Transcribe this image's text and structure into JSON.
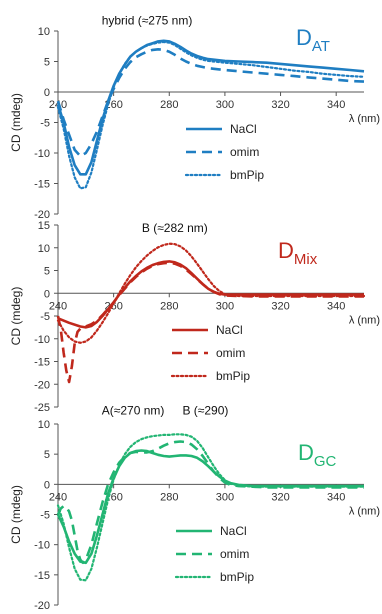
{
  "chart_data": [
    {
      "type": "line",
      "panel_label": "D",
      "panel_sub": "AT",
      "color": "#1f7ec2",
      "annotations": [
        {
          "text": "hybrid (≈275 nm)",
          "x": 272,
          "y": 11.1
        }
      ],
      "ylabel": "CD (mdeg)",
      "xlabel": "λ (nm)",
      "xlim": [
        240,
        350
      ],
      "ylim": [
        -20,
        10
      ],
      "xticks": [
        240,
        260,
        280,
        300,
        320,
        340
      ],
      "yticks": [
        10,
        5,
        0,
        -5,
        -10,
        -15,
        -20
      ],
      "legend": [
        {
          "name": "NaCl",
          "style": "solid"
        },
        {
          "name": "omim",
          "style": "dashed"
        },
        {
          "name": "bmPip",
          "style": "dotted"
        }
      ],
      "series": [
        {
          "name": "NaCl",
          "style": "solid",
          "x": [
            240,
            242,
            244,
            246,
            248,
            250,
            252,
            254,
            256,
            258,
            260,
            262,
            264,
            266,
            268,
            270,
            272,
            274,
            276,
            278,
            280,
            282,
            284,
            286,
            288,
            290,
            292,
            294,
            296,
            298,
            300,
            305,
            310,
            315,
            320,
            325,
            330,
            335,
            340,
            345,
            350
          ],
          "y": [
            -2,
            -5,
            -9,
            -12,
            -13.5,
            -13.5,
            -11.5,
            -8,
            -4.5,
            -1.5,
            1,
            3,
            4.5,
            5.8,
            6.6,
            7.2,
            7.7,
            8,
            8.3,
            8.4,
            8.3,
            7.9,
            7.4,
            6.8,
            6.3,
            5.9,
            5.6,
            5.4,
            5.3,
            5.2,
            5.1,
            5,
            4.9,
            4.8,
            4.6,
            4.4,
            4.2,
            4,
            3.8,
            3.6,
            3.4
          ]
        },
        {
          "name": "omim",
          "style": "dashed",
          "x": [
            240,
            242,
            244,
            246,
            248,
            250,
            252,
            254,
            256,
            258,
            260,
            262,
            264,
            266,
            268,
            270,
            272,
            274,
            276,
            278,
            280,
            282,
            284,
            286,
            288,
            290,
            292,
            294,
            296,
            298,
            300,
            305,
            310,
            315,
            320,
            325,
            330,
            335,
            340,
            345,
            350
          ],
          "y": [
            -1.5,
            -4.5,
            -7,
            -9.5,
            -10.5,
            -10,
            -8.5,
            -6.5,
            -4,
            -1.5,
            0.5,
            2.3,
            3.8,
            4.9,
            5.7,
            6.2,
            6.6,
            6.9,
            7,
            6.9,
            6.6,
            6.1,
            5.5,
            5,
            4.6,
            4.3,
            4.1,
            3.9,
            3.8,
            3.7,
            3.6,
            3.4,
            3.2,
            3,
            2.8,
            2.6,
            2.4,
            2.2,
            2,
            1.8,
            1.7
          ]
        },
        {
          "name": "bmPip",
          "style": "dotted",
          "x": [
            240,
            242,
            244,
            246,
            248,
            250,
            252,
            254,
            256,
            258,
            260,
            262,
            264,
            266,
            268,
            270,
            272,
            274,
            276,
            278,
            280,
            282,
            284,
            286,
            288,
            290,
            292,
            294,
            296,
            298,
            300,
            305,
            310,
            315,
            320,
            325,
            330,
            335,
            340,
            345,
            350
          ],
          "y": [
            -2.5,
            -6,
            -10.5,
            -14,
            -15.8,
            -15.6,
            -13.2,
            -9.5,
            -5.5,
            -2,
            0.8,
            3,
            4.6,
            5.8,
            6.6,
            7.2,
            7.6,
            7.9,
            8.1,
            8.2,
            8.1,
            7.7,
            7.1,
            6.5,
            6,
            5.6,
            5.3,
            5.1,
            5,
            4.9,
            4.8,
            4.6,
            4.4,
            4.1,
            3.8,
            3.5,
            3.3,
            3,
            2.8,
            2.6,
            2.5
          ]
        }
      ]
    },
    {
      "type": "line",
      "panel_label": "D",
      "panel_sub": "Mix",
      "color": "#c0281c",
      "annotations": [
        {
          "text": "B (≈282 nm)",
          "x": 282,
          "y": 13.5
        }
      ],
      "ylabel": "CD (mdeg)",
      "xlabel": "λ (nm)",
      "xlim": [
        240,
        350
      ],
      "ylim": [
        -25,
        15
      ],
      "xticks": [
        240,
        260,
        280,
        300,
        320,
        340
      ],
      "yticks": [
        15,
        10,
        5,
        0,
        -5,
        -10,
        -15,
        -20,
        -25
      ],
      "legend": [
        {
          "name": "NaCl",
          "style": "solid"
        },
        {
          "name": "omim",
          "style": "dashed"
        },
        {
          "name": "bmPip",
          "style": "dotted"
        }
      ],
      "series": [
        {
          "name": "NaCl",
          "style": "solid",
          "x": [
            240,
            244,
            248,
            250,
            252,
            254,
            256,
            258,
            260,
            262,
            264,
            266,
            268,
            270,
            272,
            274,
            276,
            278,
            280,
            282,
            284,
            286,
            288,
            290,
            292,
            294,
            296,
            298,
            300,
            302,
            305,
            310,
            320,
            330,
            340,
            350
          ],
          "y": [
            -5.5,
            -6.5,
            -7.3,
            -7.5,
            -7.2,
            -6.3,
            -5,
            -3.5,
            -2,
            -0.3,
            1.2,
            2.6,
            3.8,
            4.8,
            5.6,
            6.2,
            6.6,
            6.9,
            7,
            6.8,
            6.3,
            5.5,
            4.4,
            3.2,
            2,
            1,
            0.3,
            -0.1,
            -0.3,
            -0.3,
            -0.3,
            -0.3,
            -0.3,
            -0.3,
            -0.3,
            -0.3
          ]
        },
        {
          "name": "omim",
          "style": "dashed",
          "x": [
            240,
            241,
            242,
            243,
            244,
            245,
            246,
            247,
            248,
            249,
            250,
            252,
            254,
            256,
            258,
            260,
            262,
            264,
            266,
            268,
            270,
            272,
            274,
            276,
            278,
            280,
            282,
            284,
            286,
            288,
            290,
            292,
            294,
            296,
            298,
            300,
            305,
            310,
            320,
            330,
            340,
            350
          ],
          "y": [
            -5,
            -8,
            -13,
            -17,
            -19.5,
            -16,
            -11,
            -8.5,
            -7.8,
            -7.5,
            -7.3,
            -6.8,
            -6,
            -4.8,
            -3.4,
            -2,
            -0.4,
            1,
            2.4,
            3.6,
            4.6,
            5.4,
            6,
            6.4,
            6.6,
            6.7,
            6.5,
            6,
            5.2,
            4.2,
            3.1,
            2,
            1,
            0.3,
            -0.2,
            -0.5,
            -0.6,
            -0.7,
            -0.7,
            -0.7,
            -0.7,
            -0.7
          ]
        },
        {
          "name": "bmPip",
          "style": "dotted",
          "x": [
            240,
            242,
            244,
            246,
            248,
            250,
            252,
            254,
            256,
            258,
            260,
            262,
            264,
            266,
            268,
            270,
            272,
            274,
            276,
            278,
            280,
            282,
            284,
            286,
            288,
            290,
            292,
            294,
            296,
            298,
            300,
            302,
            305,
            310,
            320,
            330,
            340,
            350
          ],
          "y": [
            -6,
            -8.2,
            -9.7,
            -10.6,
            -10.9,
            -10.6,
            -9.7,
            -8.2,
            -6.4,
            -4.4,
            -2.2,
            0,
            2.1,
            4,
            5.7,
            7.1,
            8.3,
            9.3,
            10.1,
            10.6,
            10.9,
            10.8,
            10.3,
            9.4,
            8.1,
            6.5,
            4.8,
            3.1,
            1.6,
            0.5,
            -0.2,
            -0.5,
            -0.6,
            -0.6,
            -0.6,
            -0.6,
            -0.6,
            -0.6
          ]
        }
      ]
    },
    {
      "type": "line",
      "panel_label": "D",
      "panel_sub": "GC",
      "color": "#22b573",
      "annotations": [
        {
          "text": "A(≈270 nm)",
          "x": 267,
          "y": 11.6
        },
        {
          "text": "B (≈290)",
          "x": 293,
          "y": 11.6
        }
      ],
      "ylabel": "CD (mdeg)",
      "xlabel": "λ (nm)",
      "xlim": [
        240,
        350
      ],
      "ylim": [
        -20,
        10
      ],
      "xticks": [
        240,
        260,
        280,
        300,
        320,
        340
      ],
      "yticks": [
        10,
        5,
        0,
        -5,
        -10,
        -15,
        -20
      ],
      "legend": [
        {
          "name": "NaCl",
          "style": "solid"
        },
        {
          "name": "omim",
          "style": "dashed"
        },
        {
          "name": "bmPip",
          "style": "dotted"
        }
      ],
      "series": [
        {
          "name": "NaCl",
          "style": "solid",
          "x": [
            240,
            242,
            244,
            246,
            248,
            250,
            252,
            254,
            256,
            258,
            260,
            262,
            264,
            266,
            268,
            270,
            272,
            274,
            276,
            278,
            280,
            282,
            284,
            286,
            288,
            290,
            292,
            294,
            296,
            298,
            300,
            302,
            305,
            310,
            315,
            320,
            330,
            340,
            350
          ],
          "y": [
            -5,
            -7,
            -9.5,
            -11.5,
            -12.8,
            -13,
            -11.5,
            -8.5,
            -5,
            -1.5,
            1,
            3,
            4.4,
            5.2,
            5.5,
            5.6,
            5.5,
            5.2,
            4.9,
            4.7,
            4.6,
            4.7,
            4.8,
            4.8,
            4.7,
            4.4,
            3.8,
            3,
            2.1,
            1.3,
            0.6,
            0.2,
            -0.1,
            -0.3,
            -0.3,
            -0.3,
            -0.3,
            -0.3,
            -0.3
          ]
        },
        {
          "name": "omim",
          "style": "dashed",
          "x": [
            240,
            241,
            242,
            243,
            244,
            245,
            246,
            247,
            248,
            249,
            250,
            252,
            254,
            256,
            258,
            260,
            262,
            264,
            266,
            268,
            270,
            272,
            274,
            276,
            278,
            280,
            282,
            284,
            286,
            288,
            290,
            292,
            294,
            296,
            298,
            300,
            302,
            305,
            310,
            315,
            320,
            330,
            340,
            350
          ],
          "y": [
            -5,
            -4,
            -3.6,
            -3.8,
            -4.5,
            -6,
            -8.5,
            -11,
            -12.5,
            -13,
            -12.5,
            -10,
            -6.5,
            -3,
            0,
            2,
            3.6,
            4.6,
            5.2,
            5.4,
            5.3,
            5.3,
            5.5,
            5.9,
            6.4,
            6.8,
            7,
            7.1,
            7,
            6.6,
            5.8,
            4.7,
            3.4,
            2.1,
            1.1,
            0.3,
            -0.1,
            -0.3,
            -0.4,
            -0.5,
            -0.5,
            -0.5,
            -0.5,
            -0.5
          ]
        },
        {
          "name": "bmPip",
          "style": "dotted",
          "x": [
            240,
            242,
            244,
            246,
            248,
            250,
            252,
            254,
            256,
            258,
            260,
            262,
            264,
            266,
            268,
            270,
            272,
            274,
            276,
            278,
            280,
            282,
            284,
            286,
            288,
            290,
            292,
            294,
            296,
            298,
            300,
            302,
            305,
            310,
            315,
            320,
            330,
            340,
            350
          ],
          "y": [
            -3.5,
            -6.5,
            -10.5,
            -14,
            -15.8,
            -15.9,
            -14,
            -10.5,
            -6.5,
            -2.5,
            0.8,
            3.2,
            5,
            6.2,
            7,
            7.5,
            7.8,
            8,
            8.1,
            8.2,
            8.2,
            8.3,
            8.3,
            8.2,
            7.9,
            7.2,
            6,
            4.5,
            3,
            1.7,
            0.7,
            0.1,
            -0.2,
            -0.4,
            -0.4,
            -0.4,
            -0.4,
            -0.4,
            -0.4
          ]
        }
      ]
    }
  ]
}
